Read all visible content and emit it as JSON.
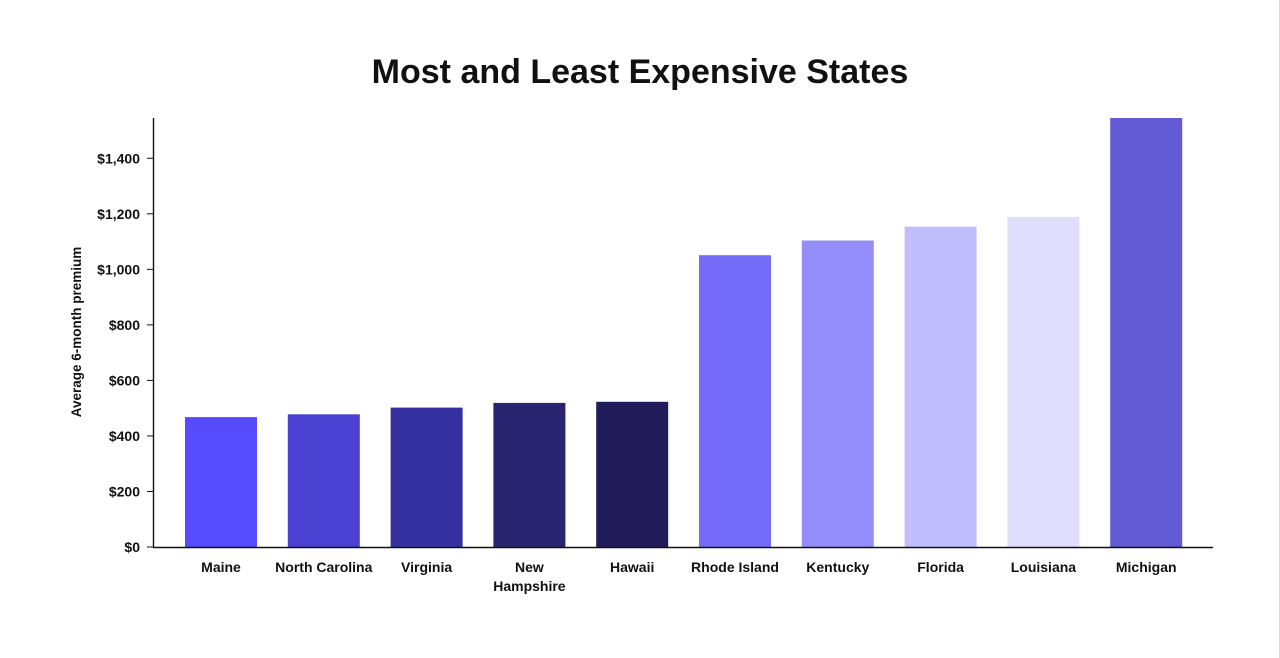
{
  "chart_data": {
    "type": "bar",
    "title": "Most and Least Expensive States",
    "xlabel": "",
    "ylabel": "Average 6-month premium",
    "categories": [
      [
        "Maine"
      ],
      [
        "North Carolina"
      ],
      [
        "Virginia"
      ],
      [
        "New",
        "Hampshire"
      ],
      [
        "Hawaii"
      ],
      [
        "Rhode Island"
      ],
      [
        "Kentucky"
      ],
      [
        "Florida"
      ],
      [
        "Louisiana"
      ],
      [
        "Michigan"
      ]
    ],
    "values": [
      468,
      478,
      502,
      519,
      523,
      1051,
      1104,
      1154,
      1189,
      1545
    ],
    "colors": [
      "#564bfe",
      "#4a40d1",
      "#3631a1",
      "#29246f",
      "#211b5a",
      "#746cf9",
      "#958df9",
      "#c2bdfd",
      "#e0defd",
      "#635ad6"
    ],
    "ylim": [
      0,
      1545
    ],
    "yticks": [
      {
        "value": 0,
        "label": "$0"
      },
      {
        "value": 200,
        "label": "$200"
      },
      {
        "value": 400,
        "label": "$400"
      },
      {
        "value": 600,
        "label": "$600"
      },
      {
        "value": 800,
        "label": "$800"
      },
      {
        "value": 1000,
        "label": "$1,000"
      },
      {
        "value": 1200,
        "label": "$1,200"
      },
      {
        "value": 1400,
        "label": "$1,400"
      }
    ],
    "grid": false,
    "legend": "none"
  }
}
